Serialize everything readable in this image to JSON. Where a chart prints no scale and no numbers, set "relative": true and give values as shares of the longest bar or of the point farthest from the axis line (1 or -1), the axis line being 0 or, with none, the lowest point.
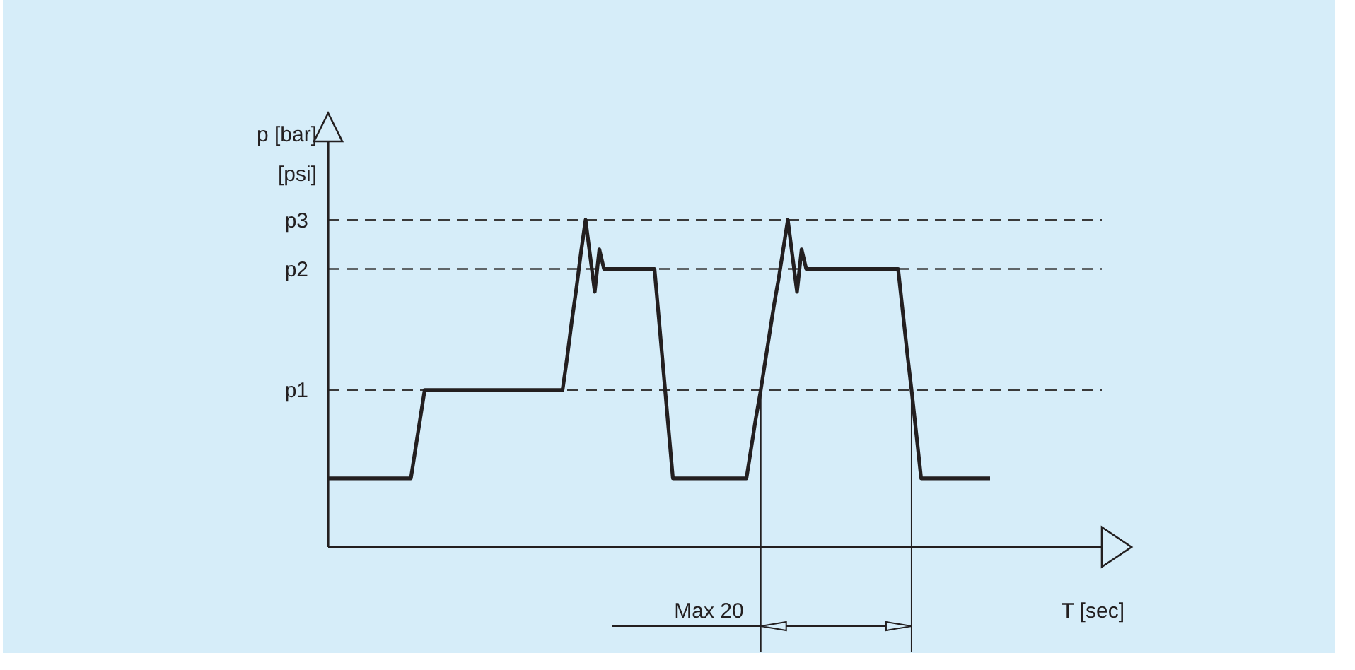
{
  "chart_data": {
    "type": "line",
    "xlabel": "T [sec]",
    "ylabel": "p [bar]\n[psi]",
    "relative": true,
    "tick_labels": "y",
    "marker": "none",
    "line_style": "solid",
    "categories": [
      null,
      null,
      null,
      null,
      null,
      null,
      null,
      null,
      null,
      null,
      null,
      null,
      null,
      null,
      null,
      null,
      null,
      null,
      null,
      null,
      null,
      null,
      null,
      null,
      null,
      null,
      null,
      null,
      null,
      null,
      null,
      null,
      null,
      null,
      null,
      null,
      null,
      null,
      null,
      null,
      null,
      null,
      null,
      null,
      null,
      null,
      null,
      null,
      null,
      null,
      null,
      null,
      null,
      null,
      null,
      null,
      null,
      null,
      null,
      null,
      null,
      null,
      null,
      null,
      null,
      null,
      null,
      null,
      null,
      null,
      null,
      null,
      null,
      null,
      null,
      null,
      null,
      null,
      null,
      null,
      null,
      null,
      null,
      null,
      null,
      null,
      null,
      null,
      null,
      null,
      null,
      null,
      null,
      null,
      null,
      null,
      null,
      null,
      null,
      null,
      null,
      null,
      null,
      null,
      null,
      null,
      null,
      null,
      null,
      null,
      null,
      null,
      null,
      null,
      null,
      null,
      null,
      null,
      null,
      null,
      null,
      null,
      null,
      null,
      null,
      null,
      null,
      null,
      null,
      null,
      null,
      null,
      null,
      null,
      null,
      null,
      null,
      null,
      null,
      null,
      null,
      null,
      null,
      null,
      null
    ],
    "series": [
      {
        "color": "#231f20",
        "values": [
          0.21,
          0.21,
          0.21,
          0.21,
          0.21,
          0.21,
          0.21,
          0.21,
          0.21,
          0.21,
          0.21,
          0.21,
          0.21,
          0.21,
          0.21,
          0.21,
          0.21,
          0.21,
          0.21,
          0.3,
          0.39,
          0.48,
          0.48,
          0.48,
          0.48,
          0.48,
          0.48,
          0.48,
          0.48,
          0.48,
          0.48,
          0.48,
          0.48,
          0.48,
          0.48,
          0.48,
          0.48,
          0.48,
          0.48,
          0.48,
          0.48,
          0.48,
          0.48,
          0.48,
          0.48,
          0.48,
          0.48,
          0.48,
          0.48,
          0.48,
          0.48,
          0.48,
          0.58,
          0.69,
          0.79,
          0.9,
          1,
          0.89,
          0.78,
          0.91,
          0.85,
          0.85,
          0.85,
          0.85,
          0.85,
          0.85,
          0.85,
          0.85,
          0.85,
          0.85,
          0.85,
          0.85,
          0.69,
          0.53,
          0.37,
          0.21,
          0.21,
          0.21,
          0.21,
          0.21,
          0.21,
          0.21,
          0.21,
          0.21,
          0.21,
          0.21,
          0.21,
          0.21,
          0.21,
          0.21,
          0.21,
          0.21,
          0.3,
          0.39,
          0.47,
          0.56,
          0.65,
          0.74,
          0.82,
          0.91,
          1,
          0.89,
          0.78,
          0.91,
          0.85,
          0.85,
          0.85,
          0.85,
          0.85,
          0.85,
          0.85,
          0.85,
          0.85,
          0.85,
          0.85,
          0.85,
          0.85,
          0.85,
          0.85,
          0.85,
          0.85,
          0.85,
          0.85,
          0.85,
          0.85,
          0.72,
          0.59,
          0.47,
          0.34,
          0.21,
          0.21,
          0.21,
          0.21,
          0.21,
          0.21,
          0.21,
          0.21,
          0.21,
          0.21,
          0.21,
          0.21,
          0.21,
          0.21,
          0.21,
          0.21
        ]
      }
    ],
    "ref_lines": [
      {
        "axis": "y",
        "value": 0.48,
        "label": "p1",
        "line_style": "dashed",
        "color": "#3a3a3a"
      },
      {
        "axis": "y",
        "value": 0.85,
        "label": "p2",
        "line_style": "dashed",
        "color": "#3a3a3a"
      },
      {
        "axis": "y",
        "value": 1,
        "label": "p3",
        "line_style": "dashed",
        "color": "#3a3a3a"
      }
    ],
    "annotations": [
      "Max 20"
    ]
  }
}
